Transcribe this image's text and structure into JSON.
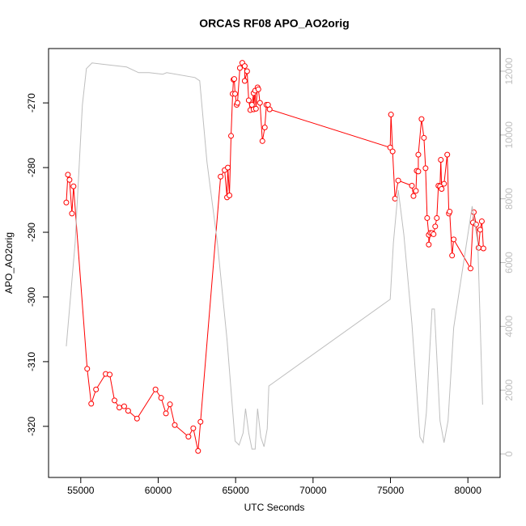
{
  "chart_data": {
    "type": "line",
    "title": "ORCAS RF08 APO_AO2orig",
    "x_label": "UTC Seconds",
    "y_label": "APO_AO2orig",
    "xlim": [
      52920,
      82080
    ],
    "ylim": [
      -327.9,
      -261.6
    ],
    "y2lim": [
      -736,
      12710
    ],
    "xticks": [
      55000,
      60000,
      65000,
      70000,
      75000,
      80000
    ],
    "yticks": [
      -320,
      -310,
      -300,
      -290,
      -280,
      -270
    ],
    "y2ticks": [
      0,
      2000,
      4000,
      6000,
      8000,
      10000,
      12000
    ],
    "series": [
      {
        "color": "#ff0000",
        "markers": true,
        "x": [
          54066,
          54170,
          54274,
          54430,
          54533,
          55415,
          55675,
          55986,
          56609,
          56869,
          57180,
          57491,
          57803,
          58062,
          58633,
          59827,
          60190,
          60501,
          60761,
          61072,
          61954,
          62266,
          62577,
          62733,
          64031,
          64290,
          64446,
          64498,
          64602,
          64705,
          64809,
          64861,
          64913,
          64965,
          65069,
          65120,
          65276,
          65432,
          65588,
          65588,
          65743,
          65847,
          65951,
          66055,
          66159,
          66159,
          66262,
          66314,
          66418,
          66470,
          66574,
          66729,
          66885,
          66989,
          67093,
          67197,
          74982,
          75034,
          75138,
          75293,
          75501,
          76384,
          76487,
          76643,
          76695,
          76799,
          76799,
          77006,
          77162,
          77266,
          77370,
          77474,
          77474,
          77577,
          77681,
          77785,
          77889,
          77993,
          78096,
          78200,
          78252,
          78304,
          78460,
          78667,
          78771,
          78823,
          78979,
          79082,
          80172,
          80328,
          80380,
          80535,
          80691,
          80795,
          80899,
          81002
        ],
        "values": [
          -285.4,
          -281.1,
          -281.9,
          -287.1,
          -282.9,
          -311.1,
          -316.5,
          -314.3,
          -311.9,
          -312,
          -316,
          -317.1,
          -316.9,
          -317.6,
          -318.8,
          -314.3,
          -315.6,
          -318,
          -316.6,
          -319.8,
          -321.6,
          -320.3,
          -323.8,
          -319.3,
          -281.4,
          -280.4,
          -284.6,
          -280,
          -284.3,
          -275.1,
          -268.6,
          -266.4,
          -266.3,
          -268.6,
          -270.3,
          -270,
          -264.6,
          -263.8,
          -264.3,
          -266.6,
          -265.1,
          -269.6,
          -271.1,
          -270.3,
          -268.5,
          -271,
          -268.1,
          -270.9,
          -267.6,
          -267.9,
          -270,
          -275.9,
          -273.8,
          -270.3,
          -270.3,
          -271,
          -276.9,
          -271.8,
          -277.5,
          -284.8,
          -282,
          -282.8,
          -284.4,
          -283.6,
          -280.5,
          -280.6,
          -278,
          -272.5,
          -275.4,
          -280.1,
          -287.8,
          -290.4,
          -291.9,
          -290.1,
          -290.1,
          -290.3,
          -289.1,
          -287.8,
          -282.8,
          -282.9,
          -278.8,
          -283.3,
          -282.5,
          -278,
          -287.1,
          -286.8,
          -293.6,
          -291.1,
          -295.6,
          -288.5,
          -286.9,
          -288.8,
          -292.4,
          -289.6,
          -288.3,
          -292.5
        ]
      },
      {
        "color": "#bebebe",
        "axis": "y2",
        "markers": false,
        "x": [
          54066,
          54637,
          55104,
          55364,
          55727,
          57958,
          58737,
          59412,
          60294,
          60553,
          62370,
          62681,
          63148,
          63823,
          64446,
          64965,
          65224,
          65484,
          65640,
          65847,
          66055,
          66262,
          66418,
          66626,
          66833,
          67041,
          67145,
          74982,
          75190,
          75501,
          75864,
          76384,
          76903,
          77110,
          77318,
          77681,
          77837,
          78200,
          78460,
          78719,
          79082,
          80276,
          80639,
          80950
        ],
        "values": [
          3376,
          6624,
          10939,
          12081,
          12259,
          12132,
          11954,
          11954,
          11904,
          11954,
          11802,
          11700,
          9163,
          6624,
          3579,
          406,
          279,
          660,
          1421,
          660,
          152,
          152,
          1421,
          533,
          228,
          787,
          2132,
          4848,
          6624,
          8274,
          6878,
          4086,
          533,
          355,
          1294,
          4543,
          4543,
          1040,
          355,
          1040,
          3959,
          7766,
          6624,
          1548
        ]
      }
    ]
  }
}
